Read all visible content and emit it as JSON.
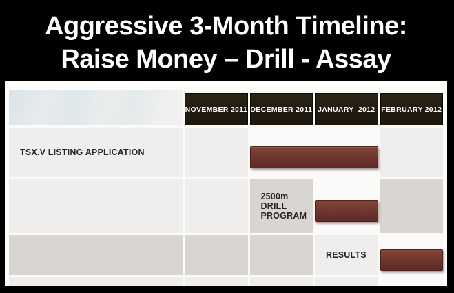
{
  "title": {
    "line1": "Aggressive 3-Month Timeline:",
    "line2": "Raise Money – Drill - Assay"
  },
  "table": {
    "columns": [
      "NOVEMBER 2011",
      "DECEMBER 2011",
      "JANUARY  2012",
      "FEBRUARY 2012"
    ],
    "rows": [
      {
        "label": "TSX.V LISTING APPLICATION"
      },
      {
        "label": "2500m DRILL PROGRAM"
      },
      {
        "label": "RESULTS"
      }
    ]
  },
  "chart_data": {
    "type": "bar",
    "subtype": "gantt-timeline",
    "title": "Aggressive 3-Month Timeline: Raise Money – Drill - Assay",
    "categories": [
      "NOVEMBER 2011",
      "DECEMBER 2011",
      "JANUARY 2012",
      "FEBRUARY 2012"
    ],
    "tasks": [
      {
        "name": "TSX.V LISTING APPLICATION",
        "start": "DECEMBER 2011",
        "end": "JANUARY 2012",
        "start_index": 1,
        "end_index": 2
      },
      {
        "name": "2500m DRILL PROGRAM",
        "start": "JANUARY 2012",
        "end": "JANUARY 2012",
        "start_index": 2,
        "end_index": 2
      },
      {
        "name": "RESULTS",
        "start": "FEBRUARY 2012",
        "end": "FEBRUARY 2012",
        "start_index": 3,
        "end_index": 3
      }
    ],
    "bar_color": "#6f352c",
    "legend_position": "none",
    "grid": true
  },
  "colors": {
    "frame": "#000000",
    "title_bg": "#000000",
    "title_text": "#ffffff",
    "header_cell_bg": "#221d10",
    "header_text": "#ffffff",
    "row_light": "#efeeec",
    "row_dark": "#d9d6d1",
    "bar": "#6f352c",
    "label_text": "#272725"
  }
}
